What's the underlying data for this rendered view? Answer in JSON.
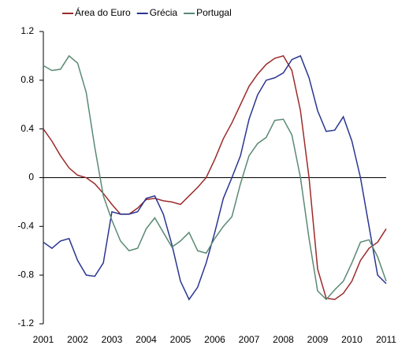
{
  "chart_data": {
    "type": "line",
    "x": [
      2001,
      2001.25,
      2001.5,
      2001.75,
      2002,
      2002.25,
      2002.5,
      2002.75,
      2003,
      2003.25,
      2003.5,
      2003.75,
      2004,
      2004.25,
      2004.5,
      2004.75,
      2005,
      2005.25,
      2005.5,
      2005.75,
      2006,
      2006.25,
      2006.5,
      2006.75,
      2007,
      2007.25,
      2007.5,
      2007.75,
      2008,
      2008.25,
      2008.5,
      2008.75,
      2009,
      2009.25,
      2009.5,
      2009.75,
      2010,
      2010.25,
      2010.5,
      2010.75,
      2011
    ],
    "series": [
      {
        "name": "Área do Euro",
        "color": "#9b2b2b",
        "values": [
          0.4,
          0.3,
          0.18,
          0.08,
          0.02,
          0,
          -0.05,
          -0.13,
          -0.22,
          -0.3,
          -0.3,
          -0.25,
          -0.18,
          -0.17,
          -0.19,
          -0.2,
          -0.22,
          -0.15,
          -0.08,
          0,
          0.15,
          0.32,
          0.45,
          0.6,
          0.75,
          0.85,
          0.93,
          0.98,
          1.0,
          0.88,
          0.55,
          0.0,
          -0.75,
          -0.99,
          -1.0,
          -0.95,
          -0.85,
          -0.68,
          -0.58,
          -0.53,
          -0.42
        ]
      },
      {
        "name": "Grécia",
        "color": "#2a3590",
        "values": [
          -0.53,
          -0.58,
          -0.52,
          -0.5,
          -0.68,
          -0.8,
          -0.81,
          -0.7,
          -0.28,
          -0.3,
          -0.3,
          -0.28,
          -0.17,
          -0.15,
          -0.3,
          -0.55,
          -0.85,
          -1.0,
          -0.9,
          -0.7,
          -0.45,
          -0.17,
          0.0,
          0.18,
          0.48,
          0.68,
          0.8,
          0.82,
          0.86,
          0.97,
          1.0,
          0.82,
          0.55,
          0.38,
          0.39,
          0.5,
          0.3,
          0.0,
          -0.4,
          -0.8,
          -0.87
        ]
      },
      {
        "name": "Portugal",
        "color": "#5a8a73",
        "values": [
          0.92,
          0.88,
          0.89,
          1.0,
          0.94,
          0.7,
          0.25,
          -0.15,
          -0.35,
          -0.52,
          -0.6,
          -0.58,
          -0.42,
          -0.33,
          -0.45,
          -0.57,
          -0.52,
          -0.45,
          -0.6,
          -0.62,
          -0.5,
          -0.4,
          -0.32,
          -0.05,
          0.18,
          0.28,
          0.33,
          0.47,
          0.48,
          0.35,
          0.0,
          -0.5,
          -0.93,
          -1.0,
          -0.92,
          -0.85,
          -0.7,
          -0.53,
          -0.51,
          -0.65,
          -0.85
        ]
      }
    ],
    "xlim": [
      2001,
      2011
    ],
    "xticks": [
      2001,
      2002,
      2003,
      2004,
      2005,
      2006,
      2007,
      2008,
      2009,
      2010,
      2011
    ],
    "ylim": [
      -1.2,
      1.2
    ],
    "yticks": [
      1.2,
      0.8,
      0.4,
      0,
      -0.4,
      -0.8,
      -1.2
    ],
    "legend": "top"
  }
}
